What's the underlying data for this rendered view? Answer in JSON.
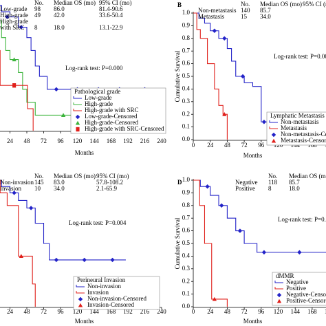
{
  "chart_data": [
    {
      "type": "km",
      "x_label": "Months",
      "xlim": [
        0,
        240
      ],
      "ylim": [
        0,
        1
      ],
      "xticks": [
        24,
        48,
        72,
        96,
        120,
        144,
        168,
        192,
        216,
        240
      ],
      "log_rank": "Log-rank test: P=0.000",
      "table": {
        "header": [
          "No.",
          "Median OS (mo)",
          "95% CI (mo)"
        ],
        "rows": [
          [
            "Low-grade",
            "98",
            "86.0",
            "81.4-90.6"
          ],
          [
            "High-grade",
            "49",
            "42.0",
            "33.6-50.4"
          ],
          [
            "High-grade with SRC",
            "8",
            "18.0",
            "13.1-22.9"
          ]
        ]
      },
      "legend_title": "Pathological grade",
      "series": [
        {
          "name": "Low-grade",
          "color": "#2323c8",
          "style": "step",
          "x": [
            0,
            6,
            12,
            24,
            36,
            48,
            54,
            60,
            66,
            77,
            216
          ],
          "values": [
            1,
            0.97,
            0.92,
            0.88,
            0.8,
            0.72,
            0.62,
            0.5,
            0.42,
            0.32,
            0.32
          ]
        },
        {
          "name": "High-grade",
          "color": "#3cb43c",
          "style": "step",
          "x": [
            0,
            6,
            12,
            18,
            24,
            36,
            42,
            48,
            60,
            192,
            196
          ],
          "values": [
            1,
            0.85,
            0.72,
            0.62,
            0.55,
            0.45,
            0.32,
            0.22,
            0.12,
            0.12,
            0
          ]
        },
        {
          "name": "High-grade with SRC",
          "color": "#e0201b",
          "style": "step",
          "x": [
            0,
            6,
            10,
            49,
            57
          ],
          "values": [
            1,
            0.62,
            0.35,
            0.17,
            0
          ]
        },
        {
          "name": "Low-grade-Censored",
          "color": "#2323c8",
          "style": "censor",
          "marker": "diamond",
          "x": [
            20,
            40,
            90,
            120,
            150,
            180,
            216
          ],
          "values": [
            0.88,
            0.8,
            0.32,
            0.32,
            0.32,
            0.32,
            0.32
          ]
        },
        {
          "name": "High-grade-Censored",
          "color": "#3cb43c",
          "style": "censor",
          "marker": "triangle",
          "x": [
            30,
            100,
            150
          ],
          "values": [
            0.55,
            0.12,
            0.12
          ]
        },
        {
          "name": "High-grade with SRC-Censored",
          "color": "#e0201b",
          "style": "censor",
          "marker": "square",
          "x": [
            30
          ],
          "values": [
            0.35
          ]
        }
      ]
    },
    {
      "type": "km",
      "panel_label": "B",
      "y_label": "Cumulative Survival",
      "x_label": "Months",
      "xlim": [
        0,
        240
      ],
      "ylim": [
        0,
        1
      ],
      "xticks": [
        0,
        24,
        48,
        72,
        96,
        120,
        144,
        168,
        192,
        216
      ],
      "yticks": [
        {
          "value": 0,
          "label": "0.0"
        },
        {
          "value": 0.1,
          "label": "0.1"
        },
        {
          "value": 0.2,
          "label": "0.2"
        },
        {
          "value": 0.3,
          "label": "0.3"
        },
        {
          "value": 0.4,
          "label": "0.4"
        },
        {
          "value": 0.5,
          "label": "0.5"
        },
        {
          "value": 0.6,
          "label": "0.6"
        },
        {
          "value": 0.7,
          "label": "0.7"
        },
        {
          "value": 0.8,
          "label": "0.8"
        },
        {
          "value": 0.9,
          "label": "0.9"
        },
        {
          "value": 1,
          "label": "1.0"
        }
      ],
      "log_rank": "Log-rank test: P=0.000",
      "table": {
        "header": [
          "No.",
          "Median OS (mo)",
          "95% CI (mo)"
        ],
        "rows": [
          [
            "Non-metastasis",
            "140",
            "85.7"
          ],
          [
            "Metastasis",
            "15",
            "34.0"
          ]
        ]
      },
      "legend_title": "Lymphatic Metastasis",
      "series": [
        {
          "name": "Non-metastasis",
          "color": "#2323c8",
          "style": "step",
          "x": [
            0,
            8,
            16,
            24,
            36,
            48,
            54,
            60,
            72,
            84,
            96,
            216
          ],
          "values": [
            1,
            0.96,
            0.92,
            0.86,
            0.8,
            0.72,
            0.62,
            0.5,
            0.45,
            0.42,
            0.14,
            0.14
          ]
        },
        {
          "name": "Metastasis",
          "color": "#e0201b",
          "style": "step",
          "x": [
            0,
            5,
            10,
            20,
            30,
            36,
            42,
            48
          ],
          "values": [
            1,
            0.87,
            0.8,
            0.6,
            0.4,
            0.27,
            0.2,
            0
          ]
        },
        {
          "name": "Non-metastasis-Censored",
          "color": "#2323c8",
          "style": "censor",
          "marker": "diamond",
          "x": [
            30,
            44,
            70,
            100,
            140,
            180
          ],
          "values": [
            0.86,
            0.8,
            0.5,
            0.14,
            0.14,
            0.14
          ]
        },
        {
          "name": "Metastasis-Censored",
          "color": "#e0201b",
          "style": "censor",
          "marker": "triangle",
          "x": [
            44
          ],
          "values": [
            0.2
          ]
        }
      ]
    },
    {
      "type": "km",
      "x_label": "Months",
      "xlim": [
        0,
        240
      ],
      "ylim": [
        0,
        1
      ],
      "xticks": [
        24,
        48,
        72,
        96,
        120,
        144,
        168,
        192,
        216,
        240
      ],
      "log_rank": "Log-rank test: P=0.004",
      "table": {
        "header": [
          "No.",
          "Median OS (mo)",
          "95% CI (mo)"
        ],
        "rows": [
          [
            "Non-invasion",
            "145",
            "83.0",
            "57.8-108.2"
          ],
          [
            "Invasion",
            "10",
            "34.0",
            "2.1-65.9"
          ]
        ]
      },
      "legend_title": "Perineural Invasion",
      "series": [
        {
          "name": "Non-invasion",
          "color": "#2323c8",
          "style": "step",
          "x": [
            0,
            12,
            24,
            36,
            48,
            60,
            72,
            80,
            189
          ],
          "values": [
            1,
            0.95,
            0.9,
            0.84,
            0.78,
            0.66,
            0.5,
            0.37,
            0.37
          ]
        },
        {
          "name": "Invasion",
          "color": "#e0201b",
          "style": "step",
          "x": [
            0,
            10,
            20,
            36,
            56,
            60
          ],
          "values": [
            1,
            0.9,
            0.8,
            0.4,
            0.18,
            0
          ]
        },
        {
          "name": "Non-invasion-Censored",
          "color": "#2323c8",
          "style": "censor",
          "marker": "diamond",
          "x": [
            30,
            54,
            90,
            130,
            170
          ],
          "values": [
            0.9,
            0.78,
            0.37,
            0.37,
            0.37
          ]
        },
        {
          "name": "Invasion-Censored",
          "color": "#e0201b",
          "style": "censor",
          "marker": "triangle",
          "x": [
            40
          ],
          "values": [
            0.4
          ]
        }
      ]
    },
    {
      "type": "km",
      "panel_label": "D",
      "y_label": "Cumulative Survival",
      "x_label": "Months",
      "xlim": [
        0,
        240
      ],
      "ylim": [
        0,
        1
      ],
      "xticks": [
        0,
        24,
        48,
        72,
        96,
        120,
        144,
        168,
        192,
        216
      ],
      "yticks": [
        {
          "value": 0,
          "label": "0.0"
        },
        {
          "value": 0.1,
          "label": "0.1"
        },
        {
          "value": 0.2,
          "label": "0.2"
        },
        {
          "value": 0.3,
          "label": "0.3"
        },
        {
          "value": 0.4,
          "label": "0.4"
        },
        {
          "value": 0.5,
          "label": "0.5"
        },
        {
          "value": 0.6,
          "label": "0.6"
        },
        {
          "value": 0.7,
          "label": "0.7"
        },
        {
          "value": 0.8,
          "label": "0.8"
        },
        {
          "value": 0.9,
          "label": "0.9"
        },
        {
          "value": 1,
          "label": "1.0"
        }
      ],
      "log_rank": "Log-rank test: P=0.000",
      "table": {
        "header": [
          "No.",
          "Median OS (mo)",
          "95% CI (mo)"
        ],
        "rows": [
          [
            "Negative",
            "118",
            "85.7"
          ],
          [
            "Positive",
            "8",
            "18.0"
          ]
        ]
      },
      "legend_title": "dMMR",
      "series": [
        {
          "name": "Negative",
          "color": "#2323c8",
          "style": "step",
          "x": [
            0,
            10,
            24,
            36,
            48,
            60,
            72,
            90,
            216
          ],
          "values": [
            1,
            0.95,
            0.88,
            0.8,
            0.7,
            0.6,
            0.5,
            0.43,
            0.43
          ]
        },
        {
          "name": "Positive",
          "color": "#e0201b",
          "style": "step",
          "x": [
            0,
            9,
            16,
            26,
            48
          ],
          "values": [
            1,
            0.8,
            0.5,
            0.06,
            0
          ]
        },
        {
          "name": "Negative-Censored",
          "color": "#2323c8",
          "style": "censor",
          "marker": "diamond",
          "x": [
            20,
            40,
            66,
            100,
            150,
            190
          ],
          "values": [
            0.95,
            0.8,
            0.6,
            0.43,
            0.43,
            0.43
          ]
        },
        {
          "name": "Positive-Censored",
          "color": "#e0201b",
          "style": "censor",
          "marker": "triangle",
          "x": [
            30
          ],
          "values": [
            0.06
          ]
        }
      ]
    }
  ]
}
